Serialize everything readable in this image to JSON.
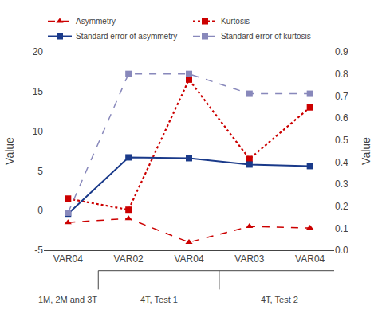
{
  "chart_data": {
    "type": "line",
    "categories": [
      "VAR04",
      "VAR02",
      "VAR04",
      "VAR03",
      "VAR04"
    ],
    "series": [
      {
        "name": "Asymmetry",
        "color": "#cc0000",
        "line_style": "dashed",
        "marker": "triangle",
        "values": [
          -1.5,
          -1.0,
          -4.0,
          -2.0,
          -2.2
        ]
      },
      {
        "name": "Kurtosis",
        "color": "#cc0000",
        "line_style": "dotted",
        "marker": "square",
        "values": [
          1.5,
          0.1,
          16.5,
          6.5,
          13.0
        ]
      },
      {
        "name": "Standard error of asymmetry",
        "color": "#1a3a8a",
        "line_style": "solid",
        "marker": "square",
        "values": [
          -0.4,
          6.7,
          6.6,
          5.8,
          5.6
        ]
      },
      {
        "name": "Standard error of kurtosis",
        "color": "#8888bb",
        "line_style": "dashed",
        "marker": "square",
        "axis": "y2",
        "values": [
          0.17,
          0.8,
          0.8,
          0.71,
          0.71
        ]
      }
    ],
    "ylabel": "Value",
    "y2label": "Value",
    "ylim": [
      -5,
      20
    ],
    "yticks": [
      -5,
      0,
      5,
      10,
      15,
      20
    ],
    "y2lim": [
      0.0,
      0.9
    ],
    "y2ticks": [
      {
        "value": 0.0,
        "label": "0.0"
      },
      0.1,
      0.2,
      0.3,
      0.4,
      0.5,
      0.6,
      0.7,
      0.8,
      0.9
    ],
    "groups": [
      {
        "label": "1M, 2M and 3T",
        "count": 1
      },
      {
        "label": "4T, Test 1",
        "count": 2
      },
      {
        "label": "4T, Test 2",
        "count": 2
      }
    ],
    "grid": false,
    "legend": "top"
  }
}
